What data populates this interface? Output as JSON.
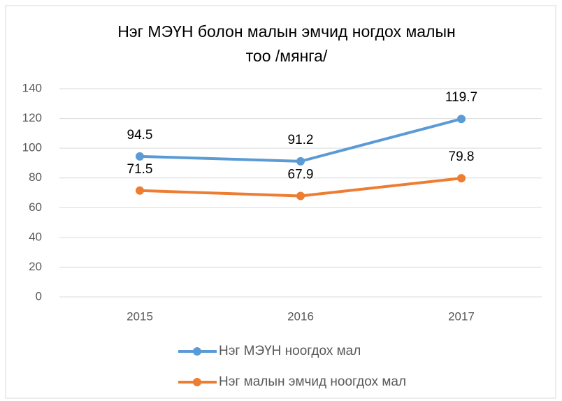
{
  "chart_data": {
    "type": "line",
    "title": "Нэг МЭҮН болон малын эмчид ногдох малын тоо /мянга/",
    "categories": [
      "2015",
      "2016",
      "2017"
    ],
    "series": [
      {
        "name": "Нэг МЭҮН ноогдох мал",
        "color": "#5b9bd5",
        "values": [
          94.5,
          91.2,
          119.7
        ]
      },
      {
        "name": "Нэг малын эмчид ноогдох мал",
        "color": "#ed7d31",
        "values": [
          71.5,
          67.9,
          79.8
        ]
      }
    ],
    "ylim": [
      0,
      140
    ],
    "yticks": [
      0,
      20,
      40,
      60,
      80,
      100,
      120,
      140
    ],
    "grid": true,
    "legend": "bottom",
    "data_labels": true
  }
}
